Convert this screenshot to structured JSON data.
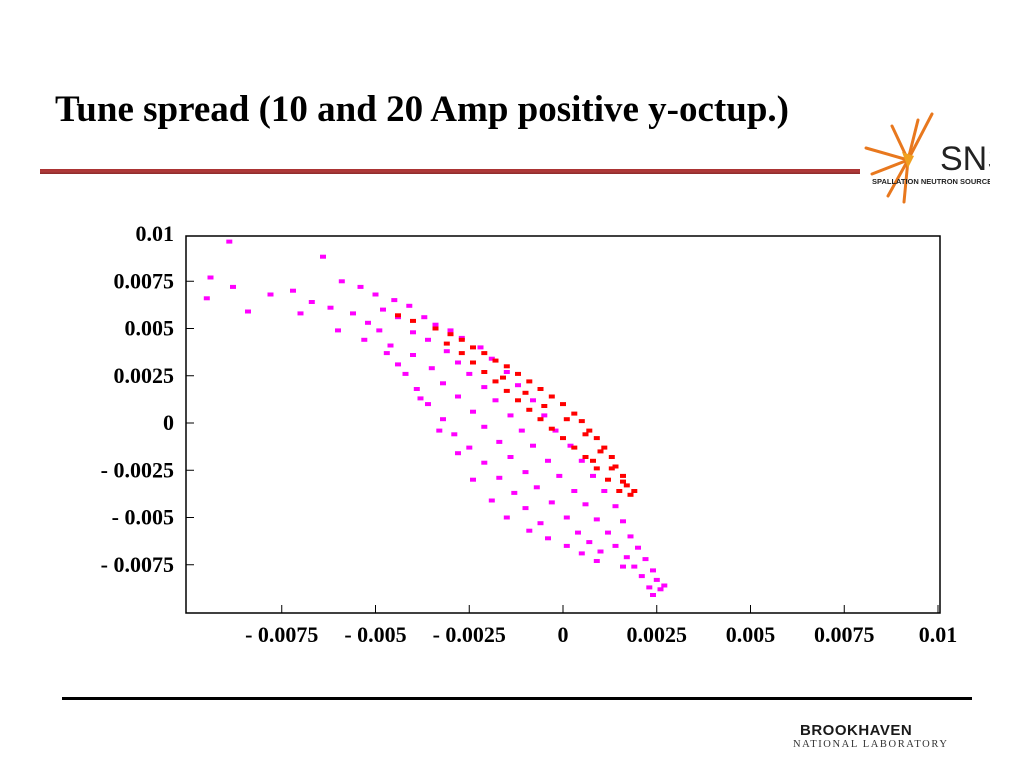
{
  "slide": {
    "title": "Tune spread (10 and 20 Amp positive y-octup.)"
  },
  "logos": {
    "sns_word": "SNS",
    "sns_sub": "SPALLATION NEUTRON SOURCE",
    "bnl_word": "BROOKHAVEN",
    "bnl_sub": "NATIONAL LABORATORY"
  },
  "colors": {
    "series_red": "#ff0000",
    "series_magenta": "#ff00ff",
    "title_rule": "#a33333",
    "sns_orange": "#e8781e"
  },
  "chart_data": {
    "type": "scatter",
    "title": "",
    "xlabel": "",
    "ylabel": "",
    "xlim": [
      -0.01,
      0.01
    ],
    "ylim": [
      -0.01,
      0.01
    ],
    "grid": false,
    "x_ticks": [
      {
        "value": -0.0075,
        "label": "- 0.0075"
      },
      {
        "value": -0.005,
        "label": "- 0.005"
      },
      {
        "value": -0.0025,
        "label": "- 0.0025"
      },
      {
        "value": 0,
        "label": "0"
      },
      {
        "value": 0.0025,
        "label": "0.0025"
      },
      {
        "value": 0.005,
        "label": "0.005"
      },
      {
        "value": 0.0075,
        "label": "0.0075"
      },
      {
        "value": 0.01,
        "label": "0.01"
      }
    ],
    "y_ticks": [
      {
        "value": 0.01,
        "label": "0.01"
      },
      {
        "value": 0.0075,
        "label": "0.0075"
      },
      {
        "value": 0.005,
        "label": "0.005"
      },
      {
        "value": 0.0025,
        "label": "0.0025"
      },
      {
        "value": 0,
        "label": "0"
      },
      {
        "value": -0.0025,
        "label": "- 0.0025"
      },
      {
        "value": -0.005,
        "label": "- 0.005"
      },
      {
        "value": -0.0075,
        "label": "- 0.0075"
      }
    ],
    "series": [
      {
        "color": "#ff00ff",
        "points": [
          [
            -0.0089,
            0.0096
          ],
          [
            -0.0094,
            0.0077
          ],
          [
            -0.0088,
            0.0072
          ],
          [
            -0.0095,
            0.0066
          ],
          [
            -0.0084,
            0.0059
          ],
          [
            -0.0064,
            0.0088
          ],
          [
            -0.0072,
            0.007
          ],
          [
            -0.0078,
            0.0068
          ],
          [
            -0.0067,
            0.0064
          ],
          [
            -0.0059,
            0.0075
          ],
          [
            -0.0054,
            0.0072
          ],
          [
            -0.0062,
            0.0061
          ],
          [
            -0.007,
            0.0058
          ],
          [
            -0.005,
            0.0068
          ],
          [
            -0.0045,
            0.0065
          ],
          [
            -0.0056,
            0.0058
          ],
          [
            -0.0048,
            0.006
          ],
          [
            -0.0041,
            0.0062
          ],
          [
            -0.0052,
            0.0053
          ],
          [
            -0.0044,
            0.0056
          ],
          [
            -0.0037,
            0.0056
          ],
          [
            -0.004,
            0.0048
          ],
          [
            -0.0049,
            0.0049
          ],
          [
            -0.0034,
            0.0052
          ],
          [
            -0.003,
            0.0049
          ],
          [
            -0.0036,
            0.0044
          ],
          [
            -0.0046,
            0.0041
          ],
          [
            -0.0027,
            0.0045
          ],
          [
            -0.0031,
            0.0038
          ],
          [
            -0.004,
            0.0036
          ],
          [
            -0.0022,
            0.004
          ],
          [
            -0.0028,
            0.0032
          ],
          [
            -0.0035,
            0.0029
          ],
          [
            -0.0044,
            0.0031
          ],
          [
            -0.0019,
            0.0034
          ],
          [
            -0.0025,
            0.0026
          ],
          [
            -0.0032,
            0.0021
          ],
          [
            -0.0039,
            0.0018
          ],
          [
            -0.0015,
            0.0027
          ],
          [
            -0.0021,
            0.0019
          ],
          [
            -0.0028,
            0.0014
          ],
          [
            -0.0036,
            0.001
          ],
          [
            -0.0012,
            0.002
          ],
          [
            -0.0018,
            0.0012
          ],
          [
            -0.0024,
            0.0006
          ],
          [
            -0.0032,
            0.0002
          ],
          [
            -0.0008,
            0.0012
          ],
          [
            -0.0014,
            0.0004
          ],
          [
            -0.0021,
            -0.0002
          ],
          [
            -0.0029,
            -0.0006
          ],
          [
            -0.0005,
            0.0004
          ],
          [
            -0.0011,
            -0.0004
          ],
          [
            -0.0017,
            -0.001
          ],
          [
            -0.0025,
            -0.0013
          ],
          [
            -0.0002,
            -0.0004
          ],
          [
            -0.0008,
            -0.0012
          ],
          [
            -0.0014,
            -0.0018
          ],
          [
            -0.0021,
            -0.0021
          ],
          [
            0.0002,
            -0.0012
          ],
          [
            -0.0004,
            -0.002
          ],
          [
            -0.001,
            -0.0026
          ],
          [
            -0.0017,
            -0.0029
          ],
          [
            0.0005,
            -0.002
          ],
          [
            -0.0001,
            -0.0028
          ],
          [
            -0.0007,
            -0.0034
          ],
          [
            -0.0013,
            -0.0037
          ],
          [
            0.0008,
            -0.0028
          ],
          [
            0.0003,
            -0.0036
          ],
          [
            -0.0003,
            -0.0042
          ],
          [
            -0.001,
            -0.0045
          ],
          [
            0.0011,
            -0.0036
          ],
          [
            0.0006,
            -0.0043
          ],
          [
            0.0001,
            -0.005
          ],
          [
            -0.0006,
            -0.0053
          ],
          [
            0.0014,
            -0.0044
          ],
          [
            0.0009,
            -0.0051
          ],
          [
            0.0004,
            -0.0058
          ],
          [
            0.0016,
            -0.0052
          ],
          [
            0.0012,
            -0.0058
          ],
          [
            0.0007,
            -0.0063
          ],
          [
            0.0018,
            -0.006
          ],
          [
            0.0014,
            -0.0065
          ],
          [
            0.001,
            -0.0068
          ],
          [
            0.002,
            -0.0066
          ],
          [
            0.0017,
            -0.0071
          ],
          [
            0.0022,
            -0.0072
          ],
          [
            0.0019,
            -0.0076
          ],
          [
            0.0024,
            -0.0078
          ],
          [
            0.0021,
            -0.0081
          ],
          [
            0.0025,
            -0.0083
          ],
          [
            0.0023,
            -0.0087
          ],
          [
            0.0026,
            -0.0088
          ],
          [
            0.0024,
            -0.0091
          ],
          [
            0.0027,
            -0.0086
          ],
          [
            0.0016,
            -0.0076
          ],
          [
            -0.006,
            0.0049
          ],
          [
            -0.0053,
            0.0044
          ],
          [
            -0.0047,
            0.0037
          ],
          [
            -0.0042,
            0.0026
          ],
          [
            -0.0038,
            0.0013
          ],
          [
            -0.0033,
            -0.0004
          ],
          [
            -0.0028,
            -0.0016
          ],
          [
            -0.0024,
            -0.003
          ],
          [
            -0.0019,
            -0.0041
          ],
          [
            -0.0015,
            -0.005
          ],
          [
            -0.0009,
            -0.0057
          ],
          [
            -0.0004,
            -0.0061
          ],
          [
            0.0001,
            -0.0065
          ],
          [
            0.0005,
            -0.0069
          ],
          [
            0.0009,
            -0.0073
          ]
        ]
      },
      {
        "color": "#ff0000",
        "points": [
          [
            -0.0034,
            0.005
          ],
          [
            -0.003,
            0.0047
          ],
          [
            -0.0027,
            0.0044
          ],
          [
            -0.0024,
            0.004
          ],
          [
            -0.0021,
            0.0037
          ],
          [
            -0.0018,
            0.0033
          ],
          [
            -0.0015,
            0.003
          ],
          [
            -0.0012,
            0.0026
          ],
          [
            -0.0009,
            0.0022
          ],
          [
            -0.0006,
            0.0018
          ],
          [
            -0.0003,
            0.0014
          ],
          [
            0.0,
            0.001
          ],
          [
            0.0003,
            0.0005
          ],
          [
            0.0005,
            0.0001
          ],
          [
            0.0007,
            -0.0004
          ],
          [
            0.0009,
            -0.0008
          ],
          [
            0.0011,
            -0.0013
          ],
          [
            0.0013,
            -0.0018
          ],
          [
            0.0014,
            -0.0023
          ],
          [
            0.0016,
            -0.0028
          ],
          [
            0.0017,
            -0.0033
          ],
          [
            0.0018,
            -0.0038
          ],
          [
            0.0015,
            -0.0036
          ],
          [
            0.0012,
            -0.003
          ],
          [
            0.0009,
            -0.0024
          ],
          [
            0.0006,
            -0.0018
          ],
          [
            0.0003,
            -0.0013
          ],
          [
            0.0,
            -0.0008
          ],
          [
            -0.0003,
            -0.0003
          ],
          [
            -0.0006,
            0.0002
          ],
          [
            -0.0009,
            0.0007
          ],
          [
            -0.0012,
            0.0012
          ],
          [
            -0.0015,
            0.0017
          ],
          [
            -0.0018,
            0.0022
          ],
          [
            -0.0021,
            0.0027
          ],
          [
            -0.0024,
            0.0032
          ],
          [
            -0.0027,
            0.0037
          ],
          [
            -0.0031,
            0.0042
          ],
          [
            -0.004,
            0.0054
          ],
          [
            -0.0044,
            0.0057
          ],
          [
            -0.001,
            0.0016
          ],
          [
            -0.0005,
            0.0009
          ],
          [
            0.0001,
            0.0002
          ],
          [
            0.0006,
            -0.0006
          ],
          [
            0.001,
            -0.0015
          ],
          [
            0.0013,
            -0.0024
          ],
          [
            0.0016,
            -0.0031
          ],
          [
            0.0019,
            -0.0036
          ],
          [
            0.0008,
            -0.002
          ],
          [
            -0.0016,
            0.0024
          ]
        ]
      }
    ]
  }
}
